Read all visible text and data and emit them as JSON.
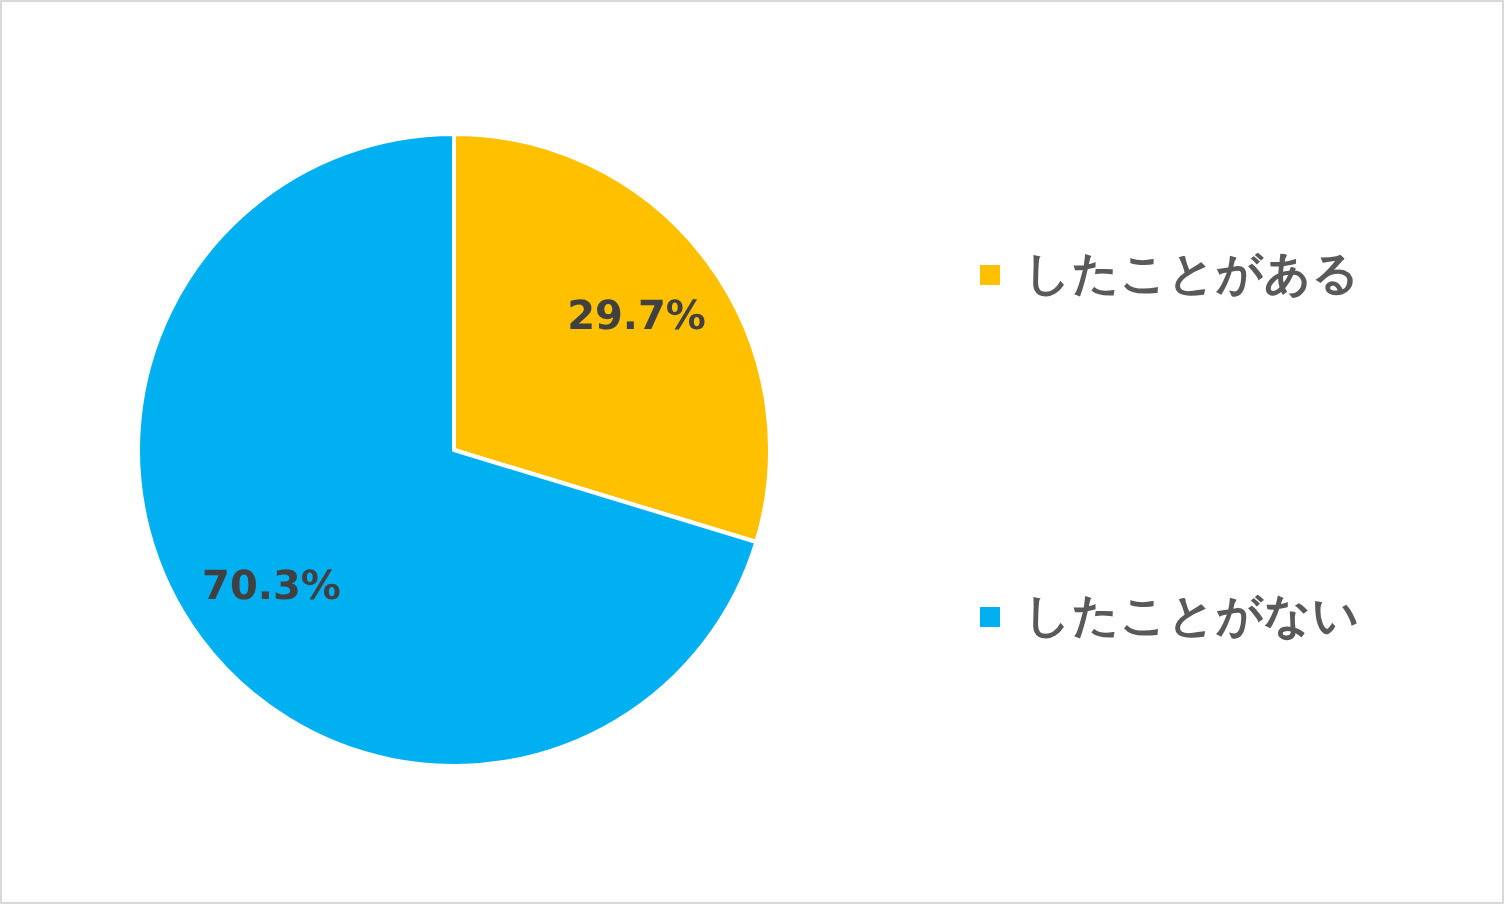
{
  "chart_data": {
    "type": "pie",
    "categories": [
      "したことがある",
      "したことがない"
    ],
    "values": [
      29.7,
      70.3
    ],
    "colors": [
      "#ffc000",
      "#00b0f0"
    ],
    "value_labels": [
      "29.7%",
      "70.3%"
    ],
    "legend": "right"
  }
}
